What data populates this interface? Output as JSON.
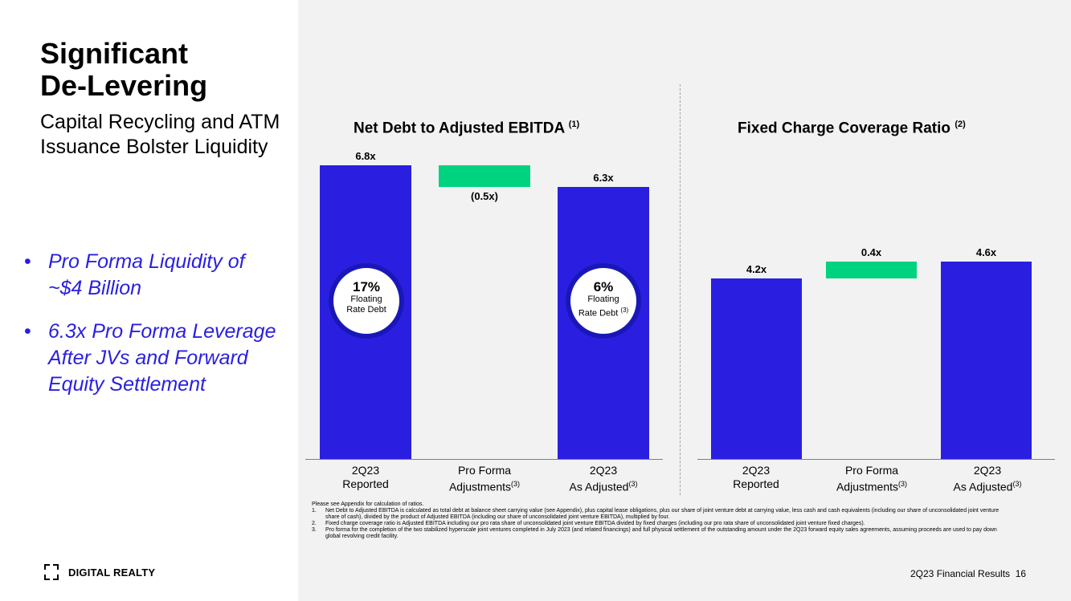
{
  "title_line1": "Significant",
  "title_line2": "De-Levering",
  "subtitle": "Capital Recycling and ATM Issuance Bolster Liquidity",
  "bullets": [
    "Pro Forma Liquidity of ~$4 Billion",
    "6.3x Pro Forma Leverage After JVs and Forward Equity Settlement"
  ],
  "bullet_glyph": "•",
  "logo_text": "DIGITAL REALTY",
  "colors": {
    "bar": "#2a1fe0",
    "adjustment": "#00d37f",
    "bullet_text": "#2a1fe0"
  },
  "chart_data": [
    {
      "type": "bar",
      "title": "Net Debt to Adjusted EBITDA",
      "title_note": "(1)",
      "categories": [
        "2Q23 Reported",
        "Pro Forma Adjustments",
        "2Q23 As Adjusted"
      ],
      "category_notes": [
        "",
        "(3)",
        "(3)"
      ],
      "values": [
        6.8,
        -0.5,
        6.3
      ],
      "labels": [
        "6.8x",
        "(0.5x)",
        "6.3x"
      ],
      "circles": [
        {
          "pct": "17%",
          "line1": "Floating",
          "line2": "Rate Debt",
          "note": ""
        },
        {
          "pct": "6%",
          "line1": "Floating",
          "line2": "Rate Debt",
          "note": "(3)"
        }
      ]
    },
    {
      "type": "bar",
      "title": "Fixed Charge Coverage Ratio",
      "title_note": "(2)",
      "categories": [
        "2Q23 Reported",
        "Pro Forma Adjustments",
        "2Q23 As Adjusted"
      ],
      "category_notes": [
        "",
        "(3)",
        "(3)"
      ],
      "values": [
        4.2,
        0.4,
        4.6
      ],
      "labels": [
        "4.2x",
        "0.4x",
        "4.6x"
      ]
    }
  ],
  "cat_lines": {
    "c1a": "2Q23",
    "c1b": "Reported",
    "c2a": "Pro Forma",
    "c2b": "Adjustments",
    "c3a": "2Q23",
    "c3b": "As Adjusted"
  },
  "notes_intro": "Please see Appendix for calculation of ratios.",
  "notes": [
    {
      "num": "1.",
      "text": "Net Debt to Adjusted EBITDA is calculated as total debt at balance sheet carrying value (see Appendix), plus capital lease obligations, plus our share of joint venture debt at carrying value, less cash and cash equivalents (including our share of unconsolidated joint venture share of cash), divided by the product of Adjusted EBITDA (including our share of unconsolidated joint venture EBITDA), multiplied by four."
    },
    {
      "num": "2.",
      "text": "Fixed charge coverage ratio is Adjusted EBITDA including our pro rata share of unconsolidated joint venture EBITDA divided by fixed charges (including our pro rata share of unconsolidated joint venture fixed charges)."
    },
    {
      "num": "3.",
      "text": "Pro forma for the completion of the two stabilized hyperscale joint ventures completed in July 2023 (and related financings) and full physical settlement of the outstanding amount under the 2Q23 forward equity sales agreements, assuming proceeds are used to pay down global revolving credit facility."
    }
  ],
  "footer_text": "2Q23 Financial Results",
  "page_number": "16"
}
